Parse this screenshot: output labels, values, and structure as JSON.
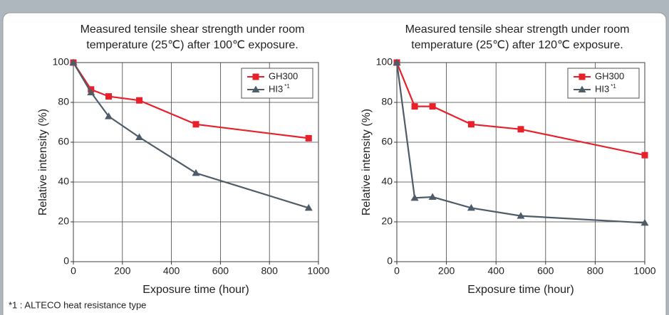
{
  "charts": [
    {
      "chart_data": {
        "type": "line",
        "title_lines": [
          "Measured tensile shear strength under room",
          "temperature (25℃) after 100℃ exposure."
        ],
        "x_label": "Exposure time (hour)",
        "y_label": "Relative intensity (%)",
        "xlim": [
          0,
          1000
        ],
        "xticks": [
          0,
          200,
          400,
          600,
          800,
          1000
        ],
        "ylim": [
          0,
          100
        ],
        "yticks": [
          0,
          20,
          40,
          60,
          80,
          100
        ],
        "grid": true,
        "series": [
          {
            "name": "GH300",
            "color": "#e8202a",
            "marker": "square",
            "x": [
              0,
              72,
              144,
              269,
              500,
              960
            ],
            "values": [
              100,
              86.5,
              83,
              81,
              69,
              62
            ]
          },
          {
            "name": "HI3",
            "name_superscript": "*1",
            "color": "#4d5c68",
            "marker": "triangle",
            "x": [
              0,
              72,
              144,
              269,
              500,
              960
            ],
            "values": [
              100,
              85,
              73,
              62.5,
              44.5,
              27
            ]
          }
        ]
      }
    },
    {
      "chart_data": {
        "type": "line",
        "title_lines": [
          "Measured tensile shear strength under room",
          "temperature (25℃) after 120℃ exposure."
        ],
        "x_label": "Exposure time (hour)",
        "y_label": "Relative intensity (%)",
        "xlim": [
          0,
          1000
        ],
        "xticks": [
          0,
          200,
          400,
          600,
          800,
          1000
        ],
        "ylim": [
          0,
          100
        ],
        "yticks": [
          0,
          20,
          40,
          60,
          80,
          100
        ],
        "grid": true,
        "series": [
          {
            "name": "GH300",
            "color": "#e8202a",
            "marker": "square",
            "x": [
              0,
              72,
              144,
              300,
              500,
              1000
            ],
            "values": [
              100,
              78,
              78,
              69,
              66.5,
              53.5
            ]
          },
          {
            "name": "HI3",
            "name_superscript": "*1",
            "color": "#4d5c68",
            "marker": "triangle",
            "x": [
              0,
              72,
              144,
              300,
              500,
              1000
            ],
            "values": [
              100,
              32,
              32.5,
              27,
              23,
              19.5
            ]
          }
        ]
      }
    }
  ],
  "footnote": "*1 : ALTECO heat resistance type"
}
